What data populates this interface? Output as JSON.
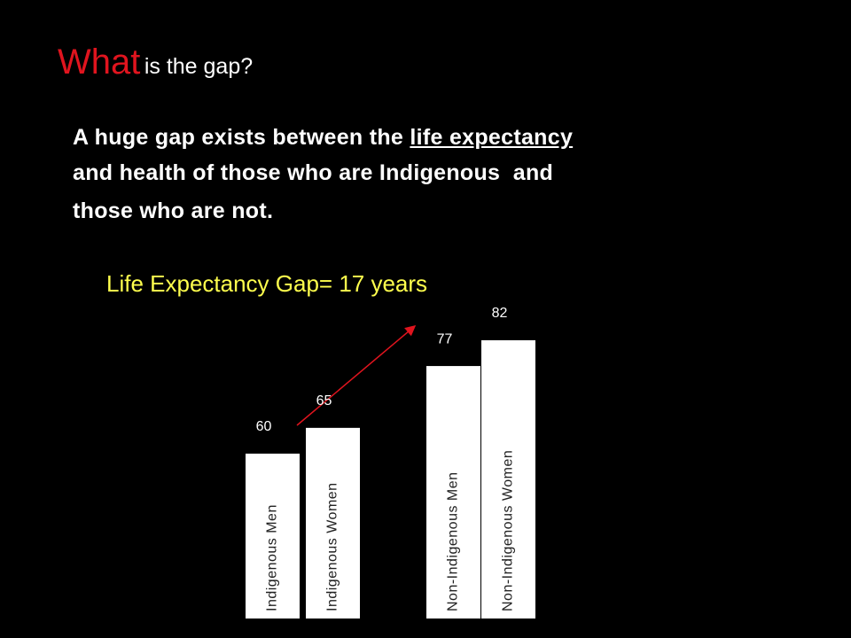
{
  "heading": {
    "emphasis": "What",
    "rest": "is the gap?"
  },
  "body": {
    "line1_start": "A huge gap exists between the",
    "line1_underlined": "life expectancy",
    "line2": "and health of those who are Indigenous  and",
    "line3": "those who are not."
  },
  "chart_data": {
    "type": "bar",
    "title": "Life Expectancy Gap= 17 years",
    "categories": [
      "Indigenous Men",
      "Indigenous Women",
      "Non-Indigenous Men",
      "Non-Indigenous Women"
    ],
    "values": [
      60,
      65,
      77,
      82
    ],
    "color": "#ffffff",
    "ylim": [
      28,
      82
    ]
  }
}
